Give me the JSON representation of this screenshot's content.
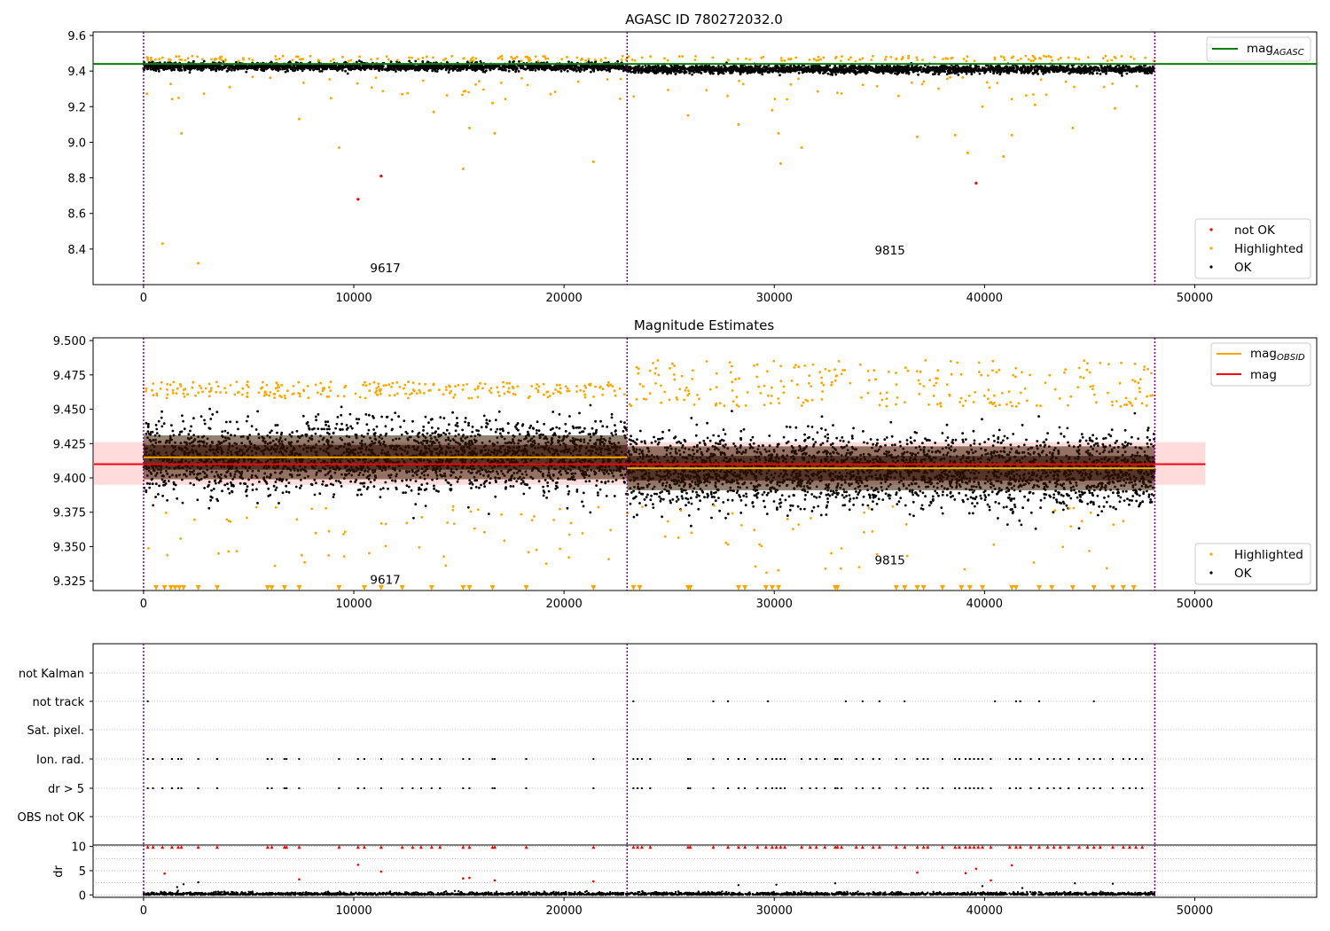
{
  "colors": {
    "ok": "#000000",
    "highlighted": "#ffa500",
    "not_ok": "#ff0000",
    "agasc_line": "#008000",
    "obsid_line": "#ffa500",
    "mag_line": "#ff0000",
    "mag_band": "#ffcccc",
    "obs_divider": "#800080",
    "grid": "#b0b0b0"
  },
  "chart_data": [
    {
      "type": "scatter",
      "title": "AGASC ID 780272032.0",
      "xlim": [
        -2400,
        55800
      ],
      "ylim": [
        8.2,
        9.62
      ],
      "xticks": [
        0,
        10000,
        20000,
        30000,
        40000,
        50000
      ],
      "xtick_labels": [
        "0",
        "10000",
        "20000",
        "30000",
        "40000",
        "50000"
      ],
      "yticks": [
        8.4,
        8.6,
        8.8,
        9.0,
        9.2,
        9.4,
        9.6
      ],
      "ytick_labels": [
        "8.4",
        "8.6",
        "8.8",
        "9.0",
        "9.2",
        "9.4",
        "9.6"
      ],
      "obs_boundaries": [
        0,
        23000,
        48100
      ],
      "observations": [
        {
          "obsid": "9617",
          "x": 11500,
          "y": 8.27
        },
        {
          "obsid": "9815",
          "x": 35500,
          "y": 8.37
        }
      ],
      "mag_agasc": 9.44,
      "legend_line": [
        "mag",
        "AGASC"
      ],
      "legend_scatter": [
        "not OK",
        "Highlighted",
        "OK"
      ],
      "series": [
        {
          "name": "OK",
          "note": "dense band of several thousand points, roughly 9.38 to 9.46 across both observations"
        },
        {
          "name": "Highlighted",
          "points": [
            [
              900,
              8.43
            ],
            [
              2600,
              8.32
            ],
            [
              1800,
              9.05
            ],
            [
              7400,
              9.13
            ],
            [
              9300,
              8.97
            ],
            [
              15200,
              8.85
            ],
            [
              15500,
              9.08
            ],
            [
              16700,
              9.05
            ],
            [
              16600,
              9.22
            ],
            [
              21400,
              8.89
            ],
            [
              13800,
              9.17
            ],
            [
              12300,
              9.27
            ],
            [
              4100,
              9.31
            ],
            [
              25900,
              9.15
            ],
            [
              28300,
              9.1
            ],
            [
              30300,
              8.88
            ],
            [
              30200,
              9.05
            ],
            [
              31300,
              8.97
            ],
            [
              29900,
              9.18
            ],
            [
              36800,
              9.03
            ],
            [
              38600,
              9.04
            ],
            [
              39200,
              8.94
            ],
            [
              40900,
              8.92
            ],
            [
              39900,
              9.2
            ],
            [
              41300,
              9.04
            ],
            [
              42400,
              9.21
            ],
            [
              44200,
              9.08
            ],
            [
              46200,
              9.19
            ]
          ]
        },
        {
          "name": "not OK",
          "points": [
            [
              10200,
              8.68
            ],
            [
              11300,
              8.81
            ],
            [
              39600,
              8.77
            ]
          ]
        }
      ]
    },
    {
      "type": "scatter",
      "title": "Magnitude Estimates",
      "xlim": [
        -2400,
        55800
      ],
      "ylim": [
        9.318,
        9.502
      ],
      "xticks": [
        0,
        10000,
        20000,
        30000,
        40000,
        50000
      ],
      "xtick_labels": [
        "0",
        "10000",
        "20000",
        "30000",
        "40000",
        "50000"
      ],
      "yticks": [
        9.325,
        9.35,
        9.375,
        9.4,
        9.425,
        9.45,
        9.475,
        9.5
      ],
      "ytick_labels": [
        "9.325",
        "9.350",
        "9.375",
        "9.400",
        "9.425",
        "9.450",
        "9.475",
        "9.500"
      ],
      "obs_boundaries": [
        0,
        23000,
        48100
      ],
      "observations": [
        {
          "obsid": "9617",
          "x": 11500,
          "y": 9.323
        },
        {
          "obsid": "9815",
          "x": 35500,
          "y": 9.337
        }
      ],
      "mag": 9.41,
      "mag_band": [
        9.395,
        9.426
      ],
      "mag_obsid": [
        {
          "x": [
            0,
            23000
          ],
          "y": 9.415
        },
        {
          "x": [
            23000,
            48100
          ],
          "y": 9.407
        }
      ],
      "legend_line": [
        [
          "mag",
          "OBSID"
        ],
        [
          "mag",
          ""
        ]
      ],
      "legend_scatter": [
        "Highlighted",
        "OK"
      ],
      "series": [
        {
          "name": "OK",
          "note": "dense band of several thousand points, roughly 9.37 to 9.46"
        },
        {
          "name": "Highlighted",
          "note": "sparse points above 9.45 and below 9.38; out-of-range values drawn as triangles at the bottom"
        }
      ]
    },
    {
      "type": "scatter",
      "title": "",
      "xlim": [
        -2400,
        55800
      ],
      "flag_labels": [
        "not Kalman",
        "not track",
        "Sat. pixel.",
        "Ion. rad.",
        "dr > 5",
        "OBS not OK"
      ],
      "obs_boundaries": [
        0,
        23000,
        48100
      ],
      "dr": {
        "ylabel": "dr",
        "ylim": [
          -0.5,
          10.3
        ],
        "yticks": [
          0,
          5,
          10
        ],
        "ytick_labels": [
          "0",
          "5",
          "10"
        ],
        "xticks": [
          0,
          10000,
          20000,
          30000,
          40000,
          50000
        ],
        "xtick_labels": [
          "0",
          "10000",
          "20000",
          "30000",
          "40000",
          "50000"
        ]
      },
      "flag_times": [
        200,
        450,
        900,
        1350,
        1650,
        1800,
        2600,
        3500,
        5900,
        6100,
        6700,
        6800,
        7400,
        9300,
        10200,
        10500,
        11300,
        12300,
        12800,
        13200,
        13700,
        14100,
        15200,
        15500,
        16600,
        16700,
        18200,
        21400,
        23300,
        23500,
        23700,
        24100,
        25900,
        26000,
        27100,
        27800,
        28300,
        28600,
        29200,
        29600,
        29900,
        30100,
        30300,
        30500,
        31300,
        31700,
        32000,
        32400,
        32900,
        33000,
        33200,
        33900,
        34200,
        34700,
        35000,
        35800,
        36200,
        36800,
        37100,
        37300,
        38000,
        38600,
        38800,
        39100,
        39300,
        39500,
        39700,
        39900,
        40300,
        41200,
        41500,
        41700,
        42200,
        42600,
        43000,
        43300,
        43600,
        44000,
        44500,
        44900,
        45200,
        45500,
        46100,
        46600,
        46900,
        47200,
        47500
      ]
    }
  ]
}
